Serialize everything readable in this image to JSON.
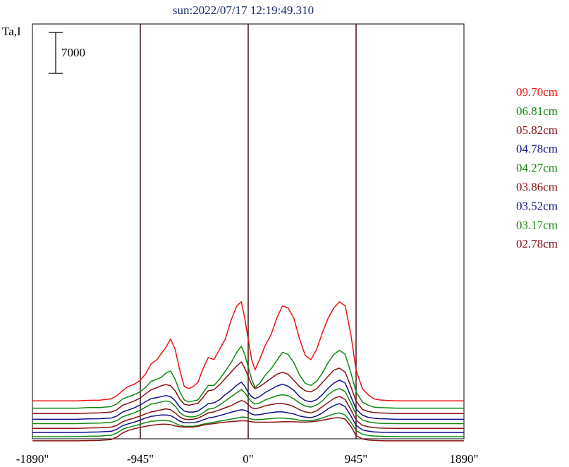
{
  "chart_data": {
    "type": "line",
    "title": "sun:2022/07/17 12:19:49.310",
    "ylabel": "Ta,I",
    "scale_bar_label": "7000",
    "scale_bar_value": 7000,
    "xlim": [
      -1890,
      1890
    ],
    "x_ticks": [
      {
        "value": -1890,
        "label": "-1890\""
      },
      {
        "value": -945,
        "label": "-945\""
      },
      {
        "value": 0,
        "label": "0\""
      },
      {
        "value": 945,
        "label": "945\""
      },
      {
        "value": 1890,
        "label": "1890\""
      }
    ],
    "vertical_markers": [
      -945,
      0,
      945
    ],
    "vertical_marker_color": "#3a0000",
    "frame_color": "#000000",
    "x": [
      -1890,
      -1800,
      -1700,
      -1600,
      -1500,
      -1400,
      -1300,
      -1200,
      -1150,
      -1100,
      -1050,
      -1000,
      -945,
      -900,
      -850,
      -800,
      -760,
      -720,
      -680,
      -640,
      -600,
      -560,
      -520,
      -480,
      -440,
      -400,
      -350,
      -300,
      -250,
      -200,
      -150,
      -100,
      -60,
      -30,
      0,
      30,
      60,
      100,
      150,
      200,
      250,
      300,
      350,
      400,
      450,
      500,
      550,
      600,
      650,
      700,
      750,
      800,
      850,
      900,
      945,
      1000,
      1050,
      1100,
      1150,
      1200,
      1300,
      1400,
      1500,
      1600,
      1700,
      1800,
      1890
    ],
    "series": [
      {
        "name": "09.70cm",
        "color": "#ee1111",
        "baseline": 17300,
        "values": [
          0,
          0,
          0,
          0,
          0,
          300,
          400,
          1000,
          2500,
          5000,
          7000,
          8000,
          10000,
          13000,
          18000,
          20000,
          23000,
          26000,
          30000,
          25000,
          15000,
          7000,
          6000,
          7000,
          9000,
          15000,
          21000,
          20000,
          25000,
          30000,
          39000,
          46000,
          48000,
          40000,
          30000,
          20000,
          15000,
          20000,
          27000,
          32000,
          40000,
          46000,
          45000,
          40000,
          30000,
          22000,
          20000,
          25000,
          33000,
          40000,
          45000,
          48000,
          46000,
          32000,
          15000,
          6000,
          3000,
          1000,
          500,
          300,
          0,
          0,
          0,
          0,
          0,
          0,
          0
        ]
      },
      {
        "name": "06.81cm",
        "color": "#118811",
        "baseline": 13800,
        "values": [
          0,
          0,
          0,
          0,
          0,
          300,
          300,
          800,
          2000,
          4500,
          5500,
          6500,
          8000,
          10000,
          13000,
          14000,
          15000,
          17000,
          18000,
          14000,
          8000,
          4000,
          3000,
          3500,
          4000,
          7000,
          11000,
          11000,
          14000,
          18000,
          22000,
          27000,
          30000,
          26000,
          20000,
          14000,
          10000,
          12000,
          16000,
          19000,
          23000,
          27000,
          26000,
          22000,
          16000,
          12000,
          11000,
          13000,
          17000,
          22000,
          26000,
          28000,
          26000,
          17000,
          8000,
          3000,
          1500,
          500,
          300,
          200,
          0,
          0,
          0,
          0,
          0,
          0,
          0
        ]
      },
      {
        "name": "05.82cm",
        "color": "#881111",
        "baseline": 11200,
        "values": [
          0,
          0,
          0,
          0,
          0,
          200,
          300,
          700,
          1800,
          4000,
          5000,
          6000,
          7500,
          9500,
          11500,
          12500,
          13500,
          14000,
          13500,
          11000,
          7000,
          4500,
          4000,
          4500,
          5000,
          7500,
          11000,
          11500,
          14000,
          17000,
          20000,
          23000,
          25000,
          22000,
          18000,
          14000,
          12000,
          13000,
          15000,
          17000,
          19000,
          20000,
          19000,
          16000,
          13000,
          11000,
          10500,
          12000,
          15000,
          18000,
          21000,
          22000,
          20000,
          13000,
          6000,
          2000,
          1000,
          500,
          300,
          200,
          0,
          0,
          0,
          0,
          0,
          0,
          0
        ]
      },
      {
        "name": "04.78cm",
        "color": "#111188",
        "baseline": 8400,
        "values": [
          0,
          0,
          0,
          0,
          0,
          200,
          300,
          600,
          1600,
          3500,
          4500,
          5500,
          7000,
          8500,
          10000,
          10500,
          11000,
          11500,
          11000,
          9000,
          6000,
          4000,
          3500,
          3500,
          4000,
          5500,
          7500,
          8000,
          9500,
          12000,
          14000,
          16500,
          18000,
          16000,
          13000,
          11000,
          10000,
          11000,
          13000,
          14500,
          16000,
          17000,
          16000,
          14000,
          11000,
          9000,
          8500,
          9500,
          12000,
          15000,
          17500,
          19000,
          17500,
          11000,
          5000,
          2000,
          1000,
          500,
          300,
          200,
          0,
          0,
          0,
          0,
          0,
          0,
          0
        ]
      },
      {
        "name": "04.27cm",
        "color": "#118811",
        "baseline": 6300,
        "values": [
          0,
          0,
          0,
          0,
          0,
          200,
          300,
          600,
          1500,
          3300,
          4300,
          5200,
          6500,
          8000,
          9500,
          10000,
          10500,
          11000,
          10500,
          8500,
          5500,
          3800,
          3300,
          3300,
          3800,
          5000,
          7000,
          7500,
          9000,
          11000,
          13000,
          15000,
          16500,
          15000,
          12500,
          10500,
          9500,
          10000,
          11500,
          12500,
          13500,
          14000,
          13500,
          12000,
          10000,
          8500,
          8000,
          9000,
          11000,
          14000,
          16000,
          17000,
          15500,
          10000,
          4500,
          1800,
          900,
          400,
          200,
          100,
          0,
          0,
          0,
          0,
          0,
          0,
          0
        ]
      },
      {
        "name": "03.86cm",
        "color": "#881111",
        "baseline": 4000,
        "values": [
          0,
          0,
          0,
          0,
          0,
          200,
          300,
          600,
          1500,
          3200,
          4200,
          5000,
          6000,
          7000,
          8000,
          8500,
          9000,
          9500,
          9000,
          7500,
          5500,
          4500,
          4300,
          4500,
          5000,
          6000,
          7500,
          8000,
          9000,
          10000,
          11000,
          12500,
          13500,
          13000,
          11500,
          10000,
          9500,
          10000,
          11000,
          11500,
          12000,
          12000,
          11500,
          10500,
          9000,
          8000,
          7500,
          8500,
          10500,
          12500,
          14500,
          15500,
          14000,
          9000,
          4000,
          1500,
          800,
          400,
          200,
          100,
          0,
          0,
          0,
          0,
          0,
          0,
          0
        ]
      },
      {
        "name": "03.52cm",
        "color": "#111188",
        "baseline": 2000,
        "values": [
          0,
          0,
          0,
          0,
          0,
          200,
          300,
          600,
          1600,
          3300,
          4200,
          5000,
          6000,
          7000,
          7800,
          8200,
          8500,
          8500,
          8200,
          7000,
          5500,
          4800,
          4700,
          4800,
          5200,
          6000,
          7000,
          7500,
          8200,
          9000,
          9800,
          10500,
          11000,
          10800,
          10000,
          9000,
          8500,
          8700,
          9200,
          9600,
          10000,
          10000,
          9500,
          9000,
          8000,
          7500,
          7200,
          8000,
          9500,
          11500,
          13000,
          14000,
          12500,
          8000,
          3500,
          1300,
          700,
          300,
          200,
          100,
          0,
          0,
          0,
          0,
          0,
          0,
          0
        ]
      },
      {
        "name": "03.17cm",
        "color": "#118811",
        "baseline": 0,
        "values": [
          0,
          0,
          0,
          0,
          0,
          200,
          300,
          700,
          1800,
          3600,
          4500,
          5200,
          6000,
          6800,
          7400,
          7700,
          7800,
          7800,
          7500,
          6500,
          5500,
          5000,
          5000,
          5100,
          5400,
          6000,
          6500,
          7000,
          7500,
          8000,
          8500,
          9000,
          9500,
          9500,
          9000,
          8500,
          8200,
          8300,
          8500,
          8800,
          9000,
          9000,
          8800,
          8500,
          8000,
          7800,
          7800,
          8300,
          9000,
          10000,
          11000,
          11500,
          10500,
          7000,
          3000,
          1200,
          600,
          300,
          200,
          100,
          0,
          0,
          0,
          0,
          0,
          0,
          0
        ]
      },
      {
        "name": "02.78cm",
        "color": "#881111",
        "baseline": -2000,
        "values": [
          0,
          0,
          0,
          0,
          0,
          100,
          200,
          600,
          1800,
          3800,
          5000,
          5800,
          6500,
          7000,
          7500,
          7800,
          8000,
          8000,
          7800,
          7200,
          6800,
          6600,
          6600,
          6700,
          7000,
          7500,
          8000,
          8300,
          8700,
          9000,
          9300,
          9500,
          9700,
          9700,
          9500,
          9200,
          9000,
          9000,
          9000,
          9000,
          9100,
          9200,
          9200,
          9200,
          9100,
          9100,
          9200,
          9500,
          10000,
          10500,
          11000,
          11200,
          10500,
          7000,
          2500,
          900,
          400,
          200,
          100,
          0,
          0,
          0,
          0,
          0,
          0,
          0,
          0
        ]
      }
    ]
  }
}
